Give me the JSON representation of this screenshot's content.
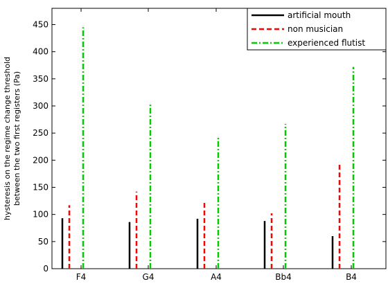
{
  "chart_data": {
    "type": "bar",
    "categories": [
      "F4",
      "G4",
      "A4",
      "Bb4",
      "B4"
    ],
    "ylabel_lines": [
      "hysteresis on the regime change threshold",
      "between the two first registers (Pa)"
    ],
    "ylim": [
      0,
      480
    ],
    "yticks": [
      0,
      50,
      100,
      150,
      200,
      250,
      300,
      350,
      400,
      450
    ],
    "grid": false,
    "legend_position": "top-right",
    "series": [
      {
        "name": "artificial mouth",
        "color": "#000000",
        "dash": "solid",
        "values": [
          93,
          86,
          92,
          88,
          60
        ]
      },
      {
        "name": "non musician",
        "color": "#ff0000",
        "dash": "dashed",
        "values": [
          117,
          142,
          125,
          102,
          194
        ]
      },
      {
        "name": "experienced flutist",
        "color": "#00cc00",
        "dash": "dashdot",
        "values": [
          445,
          305,
          243,
          267,
          372
        ]
      }
    ]
  }
}
